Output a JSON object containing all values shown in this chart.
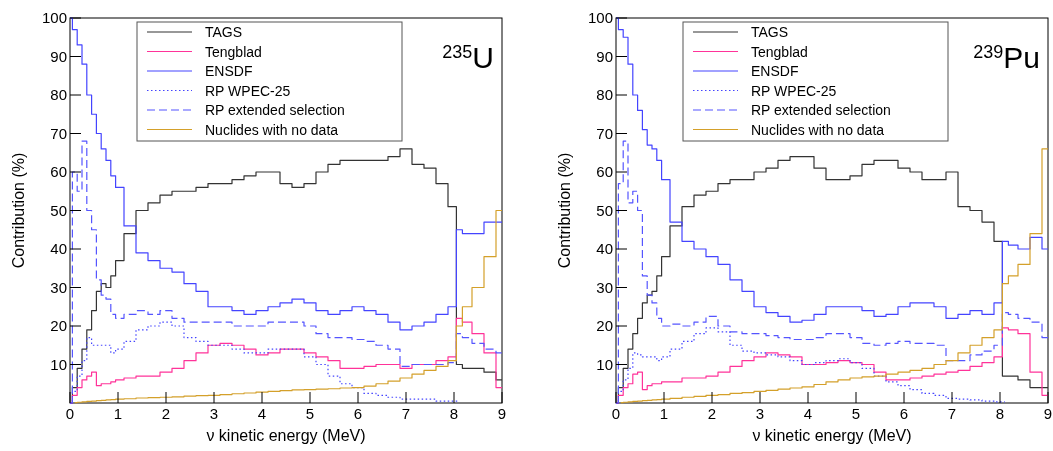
{
  "chart_data": [
    {
      "type": "step",
      "title": "$^{235}$U",
      "xlabel": "ν kinetic energy (MeV)",
      "ylabel": "Contribution (%)",
      "xlim": [
        0,
        9
      ],
      "ylim": [
        0,
        100
      ],
      "xticks": [
        0,
        1,
        2,
        3,
        4,
        5,
        6,
        7,
        8,
        9
      ],
      "yticks": [
        10,
        20,
        30,
        40,
        50,
        60,
        70,
        80,
        90,
        100
      ],
      "grid": false,
      "legend": "top",
      "marker": "none",
      "x": [
        0,
        0.1,
        0.2,
        0.3,
        0.4,
        0.5,
        0.6,
        0.7,
        0.8,
        0.9,
        1,
        1.25,
        1.5,
        1.75,
        2,
        2.25,
        2.5,
        2.75,
        3,
        3.25,
        3.5,
        3.75,
        4,
        4.25,
        4.5,
        4.75,
        5,
        5.25,
        5.5,
        5.75,
        6,
        6.25,
        6.5,
        6.75,
        7,
        7.25,
        7.5,
        7.75,
        8,
        8.1,
        8.25,
        8.5,
        8.75,
        9
      ],
      "series": [
        {
          "name": "TAGS",
          "color": "#333333",
          "line_style": "solid",
          "values": [
            0,
            4,
            9,
            14,
            19,
            24,
            29,
            31,
            30,
            33,
            37,
            44,
            50,
            52,
            54,
            55,
            55,
            56,
            57,
            57,
            58,
            59,
            60,
            60,
            57,
            56,
            57,
            60,
            62,
            63,
            63,
            63,
            63,
            64,
            66,
            62,
            61,
            57,
            51,
            10,
            9,
            9,
            8,
            6
          ]
        },
        {
          "name": "Tengblad",
          "color": "#ff3399",
          "line_style": "solid",
          "values": [
            0,
            2,
            4,
            6,
            7,
            8,
            4.5,
            5,
            5,
            5.5,
            6,
            6.5,
            7,
            7,
            8,
            9,
            11,
            13,
            15,
            15.5,
            15,
            14,
            12.5,
            13,
            14,
            14,
            13,
            12,
            11,
            9,
            9,
            9.5,
            10,
            10,
            9,
            10,
            10,
            11,
            12,
            22,
            21,
            18,
            13,
            4
          ]
        },
        {
          "name": "ENSDF",
          "color": "#4444ff",
          "line_style": "solid",
          "values": [
            100,
            97,
            93,
            88,
            80,
            75,
            70,
            66,
            63,
            59,
            56,
            46,
            39,
            37,
            35,
            34,
            31,
            29,
            25,
            25,
            24,
            23,
            24,
            25,
            26,
            27,
            26,
            24,
            23,
            24,
            25,
            24,
            23,
            21,
            19,
            20,
            21,
            23,
            25,
            45,
            44,
            44,
            47,
            47
          ]
        },
        {
          "name": "RP WPEC-25",
          "color": "#4444ff",
          "line_style": "dotted",
          "values": [
            0,
            3,
            7,
            11,
            17,
            15,
            15,
            15,
            15,
            13,
            14,
            16,
            19,
            20,
            21,
            20,
            17,
            16,
            15,
            15,
            14,
            13,
            13,
            14,
            14,
            14,
            12,
            10,
            7,
            5,
            4,
            2.5,
            2,
            1.5,
            1,
            1,
            1,
            0.5,
            0.5,
            0.5,
            null,
            null,
            null,
            null
          ]
        },
        {
          "name": "RP extended selection",
          "color": "#5555ff",
          "line_style": "dashed",
          "values": [
            0,
            60,
            55,
            68,
            50,
            45,
            32,
            28,
            27,
            23,
            22,
            23,
            24,
            23,
            24,
            22,
            21,
            21,
            21,
            21,
            20,
            20,
            20,
            21,
            21,
            21,
            20,
            18,
            17,
            17,
            16.5,
            16,
            15,
            14,
            9.5,
            10,
            10,
            10,
            10.5,
            18,
            17,
            15.5,
            14,
            13
          ]
        },
        {
          "name": "Nuclides with no data",
          "color": "#d4a02a",
          "line_style": "solid",
          "values": [
            null,
            0.1,
            0.2,
            0.3,
            0.4,
            0.5,
            0.6,
            0.7,
            0.8,
            0.9,
            1,
            1.1,
            1.3,
            1.4,
            1.5,
            1.6,
            1.8,
            1.9,
            2,
            2.2,
            2.4,
            2.6,
            2.8,
            3,
            3.2,
            3.4,
            3.5,
            3.6,
            3.7,
            3.9,
            4,
            4.4,
            5,
            5.7,
            6.5,
            7.5,
            8.5,
            9.5,
            11,
            20,
            25,
            30,
            38,
            50
          ]
        }
      ]
    },
    {
      "type": "step",
      "title": "$^{239}$Pu",
      "xlabel": "ν kinetic energy (MeV)",
      "ylabel": "Contribution (%)",
      "xlim": [
        0,
        9
      ],
      "ylim": [
        0,
        100
      ],
      "xticks": [
        0,
        1,
        2,
        3,
        4,
        5,
        6,
        7,
        8,
        9
      ],
      "yticks": [
        10,
        20,
        30,
        40,
        50,
        60,
        70,
        80,
        90,
        100
      ],
      "grid": false,
      "legend": "top",
      "marker": "none",
      "x": [
        0,
        0.1,
        0.2,
        0.3,
        0.4,
        0.5,
        0.6,
        0.7,
        0.8,
        0.9,
        1,
        1.25,
        1.5,
        1.75,
        2,
        2.25,
        2.5,
        2.75,
        3,
        3.25,
        3.5,
        3.75,
        4,
        4.25,
        4.5,
        4.75,
        5,
        5.25,
        5.5,
        5.75,
        6,
        6.25,
        6.5,
        6.75,
        7,
        7.25,
        7.5,
        7.75,
        8,
        8.1,
        8.25,
        8.5,
        8.75,
        9
      ],
      "series": [
        {
          "name": "TAGS",
          "color": "#333333",
          "line_style": "solid",
          "values": [
            0,
            4,
            9,
            14,
            18,
            22,
            26,
            28,
            29,
            33,
            38,
            46,
            51,
            54,
            55,
            57,
            58,
            58,
            60,
            61,
            63,
            64,
            64,
            61,
            58,
            58,
            59,
            62,
            63,
            63,
            61,
            60,
            58,
            58,
            60,
            51,
            50,
            47,
            42,
            7,
            7,
            6,
            4,
            4
          ]
        },
        {
          "name": "Tengblad",
          "color": "#ff3399",
          "line_style": "solid",
          "values": [
            0,
            2,
            4,
            5,
            7.5,
            8,
            3.5,
            4.5,
            5,
            5,
            5.5,
            5.5,
            6.5,
            6.5,
            7,
            8,
            9.5,
            11,
            12,
            13,
            12.5,
            12,
            10,
            10,
            10.5,
            11,
            10.5,
            10,
            8,
            6,
            6,
            6.5,
            7,
            7.5,
            8,
            8.5,
            9.5,
            10.5,
            12,
            19.5,
            19,
            18,
            8,
            2
          ]
        },
        {
          "name": "ENSDF",
          "color": "#4444ff",
          "line_style": "solid",
          "values": [
            100,
            97,
            95,
            88,
            80,
            76,
            71,
            67,
            66,
            63,
            58,
            47,
            42,
            40,
            38,
            36,
            32,
            29,
            25,
            23.5,
            22.5,
            21,
            21.5,
            23,
            25,
            25,
            25,
            24,
            22.5,
            23,
            25,
            26,
            26,
            25,
            22,
            23,
            24,
            23,
            26,
            42,
            41,
            40,
            43,
            40
          ]
        },
        {
          "name": "RP WPEC-25",
          "color": "#4444ff",
          "line_style": "dotted",
          "values": [
            0,
            3,
            6,
            9,
            13,
            12.5,
            12,
            12,
            12,
            11,
            12,
            14,
            16,
            18,
            19.5,
            18.5,
            15,
            13.5,
            13,
            12.5,
            12,
            11,
            10,
            10.5,
            11,
            11.5,
            10.5,
            9,
            7,
            5.5,
            4.5,
            3.5,
            2.5,
            2,
            1.2,
            1,
            0.8,
            0.5,
            0.3,
            0.3,
            null,
            null,
            null,
            null
          ]
        },
        {
          "name": "RP extended selection",
          "color": "#5555ff",
          "line_style": "dashed",
          "values": [
            0,
            57,
            68,
            52,
            55,
            50,
            33,
            28,
            26,
            22,
            20,
            20.5,
            20,
            21,
            22.5,
            20,
            18.5,
            18,
            18,
            17.5,
            17,
            16.5,
            16.5,
            17,
            18,
            18,
            17,
            15.5,
            15,
            15.5,
            16,
            15.5,
            15.5,
            15,
            11,
            11,
            12.5,
            13.5,
            15,
            23.5,
            23,
            22,
            21,
            17
          ]
        },
        {
          "name": "Nuclides with no data",
          "color": "#d4a02a",
          "line_style": "solid",
          "values": [
            null,
            0.1,
            0.2,
            0.3,
            0.4,
            0.5,
            0.6,
            0.7,
            0.8,
            0.9,
            1,
            1.2,
            1.5,
            1.7,
            2,
            2.2,
            2.5,
            2.7,
            3,
            3.3,
            3.6,
            3.9,
            4.2,
            4.8,
            5.5,
            6,
            6.5,
            6.8,
            7,
            7.5,
            8,
            8.5,
            9,
            10,
            11,
            13,
            15,
            17,
            19,
            31,
            33,
            36,
            44,
            66
          ]
        }
      ]
    }
  ]
}
